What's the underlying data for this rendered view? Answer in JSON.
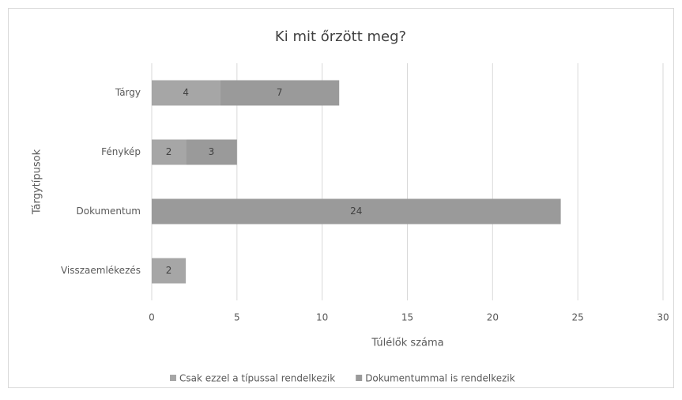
{
  "chart_data": {
    "type": "stacked-barh",
    "title": "Ki mit őrzött meg?",
    "x_label": "Túlélők száma",
    "y_label": "Tárgytípusok",
    "categories": [
      "Tárgy",
      "Fénykép",
      "Dokumentum",
      "Visszaemlékezés"
    ],
    "series": [
      {
        "name": "Csak ezzel a típussal rendelkezik",
        "color": "#a6a6a6",
        "values": [
          4,
          2,
          null,
          2
        ]
      },
      {
        "name": "Dokumentummal is rendelkezik",
        "color": "#9a9a9a",
        "values": [
          7,
          3,
          24,
          null
        ]
      }
    ],
    "xlim": [
      0,
      30
    ],
    "xticks": [
      0,
      5,
      10,
      15,
      20,
      25,
      30
    ],
    "grid": true,
    "legend": "bottom"
  }
}
